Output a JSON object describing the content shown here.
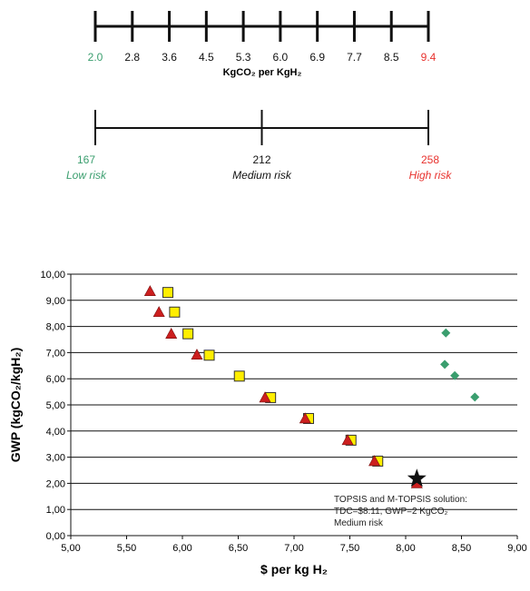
{
  "scale_gwp": {
    "ticks": [
      "2.0",
      "2.8",
      "3.6",
      "4.5",
      "5.3",
      "6.0",
      "6.9",
      "7.7",
      "8.5",
      "9.4"
    ],
    "title": "KgCO₂ per KgH₂",
    "colors": {
      "low": "#3a9e6e",
      "high": "#e8322e",
      "normal": "#111111"
    }
  },
  "scale_risk": {
    "points": [
      {
        "value": "167",
        "label": "Low risk",
        "color": "#3a9e6e"
      },
      {
        "value": "212",
        "label": "Medium risk",
        "color": "#111111"
      },
      {
        "value": "258",
        "label": "High risk",
        "color": "#e8322e"
      }
    ]
  },
  "chart_data": {
    "type": "scatter",
    "xlabel": "$ per kg H₂",
    "ylabel": "GWP (kgCO₂/kgH₂)",
    "xlim": [
      5.0,
      9.0
    ],
    "ylim": [
      0.0,
      10.0
    ],
    "x_ticks": [
      "5,00",
      "5,50",
      "6,00",
      "6,50",
      "7,00",
      "7,50",
      "8,00",
      "8,50",
      "9,00"
    ],
    "y_ticks": [
      "0,00",
      "1,00",
      "2,00",
      "3,00",
      "4,00",
      "5,00",
      "6,00",
      "7,00",
      "8,00",
      "9,00",
      "10,00"
    ],
    "grid": "horizontal",
    "series": [
      {
        "marker": "triangle",
        "color": "#cc1f1f",
        "points": [
          [
            5.71,
            9.35
          ],
          [
            5.79,
            8.55
          ],
          [
            5.9,
            7.72
          ],
          [
            6.13,
            6.92
          ],
          [
            6.74,
            5.28
          ],
          [
            7.1,
            4.48
          ],
          [
            7.48,
            3.65
          ],
          [
            7.72,
            2.85
          ],
          [
            8.1,
            2.0
          ]
        ]
      },
      {
        "marker": "square",
        "color": "#ffee00",
        "points": [
          [
            5.87,
            9.3
          ],
          [
            5.93,
            8.55
          ],
          [
            6.05,
            7.72
          ],
          [
            6.24,
            6.9
          ],
          [
            6.51,
            6.1
          ],
          [
            6.79,
            5.28
          ],
          [
            7.13,
            4.48
          ],
          [
            7.51,
            3.65
          ],
          [
            7.75,
            2.85
          ]
        ]
      },
      {
        "marker": "diamond",
        "color": "#3a9e6e",
        "points": [
          [
            8.36,
            7.75
          ],
          [
            8.35,
            6.55
          ],
          [
            8.44,
            6.12
          ],
          [
            8.62,
            5.3
          ]
        ]
      },
      {
        "marker": "star",
        "color": "#111111",
        "points": [
          [
            8.1,
            2.18
          ]
        ]
      }
    ],
    "annotation": {
      "lines": [
        "TOPSIS  and M-TOPSIS  solution:",
        "TDC=$8.11, GWP=2 KgCO₂",
        "Medium risk"
      ]
    }
  }
}
